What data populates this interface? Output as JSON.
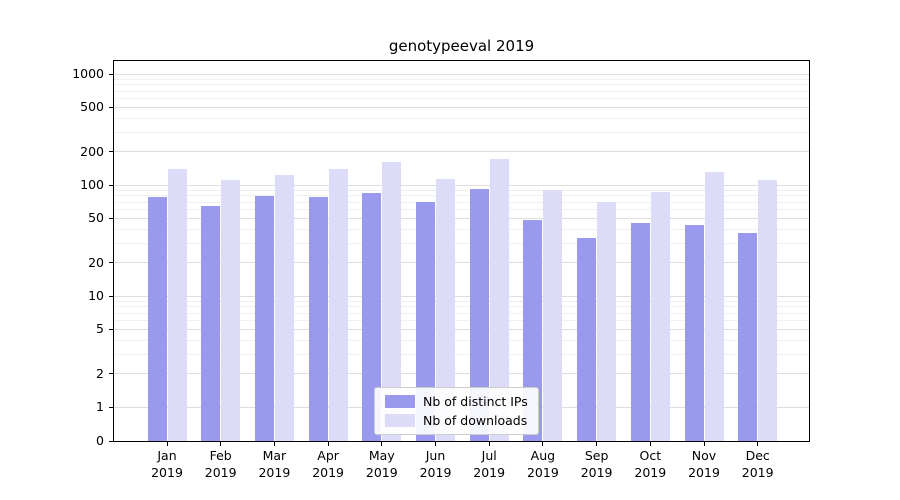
{
  "chart_data": {
    "type": "bar",
    "title": "genotypeeval 2019",
    "yscale": "symlog",
    "ylim": [
      0,
      1300
    ],
    "yticks": [
      0,
      1,
      2,
      5,
      10,
      20,
      50,
      100,
      200,
      500,
      1000
    ],
    "grid": true,
    "legend_position": "lower center",
    "categories": [
      "Jan 2019",
      "Feb 2019",
      "Mar 2019",
      "Apr 2019",
      "May 2019",
      "Jun 2019",
      "Jul 2019",
      "Aug 2019",
      "Sep 2019",
      "Oct 2019",
      "Nov 2019",
      "Dec 2019"
    ],
    "series": [
      {
        "name": "Nb of distinct IPs",
        "color": "#9999ee",
        "values": [
          78,
          65,
          80,
          78,
          85,
          70,
          92,
          48,
          33,
          45,
          44,
          37
        ]
      },
      {
        "name": "Nb of downloads",
        "color": "#dcdcf8",
        "values": [
          140,
          112,
          122,
          140,
          160,
          113,
          170,
          90,
          70,
          87,
          132,
          112
        ]
      }
    ]
  }
}
